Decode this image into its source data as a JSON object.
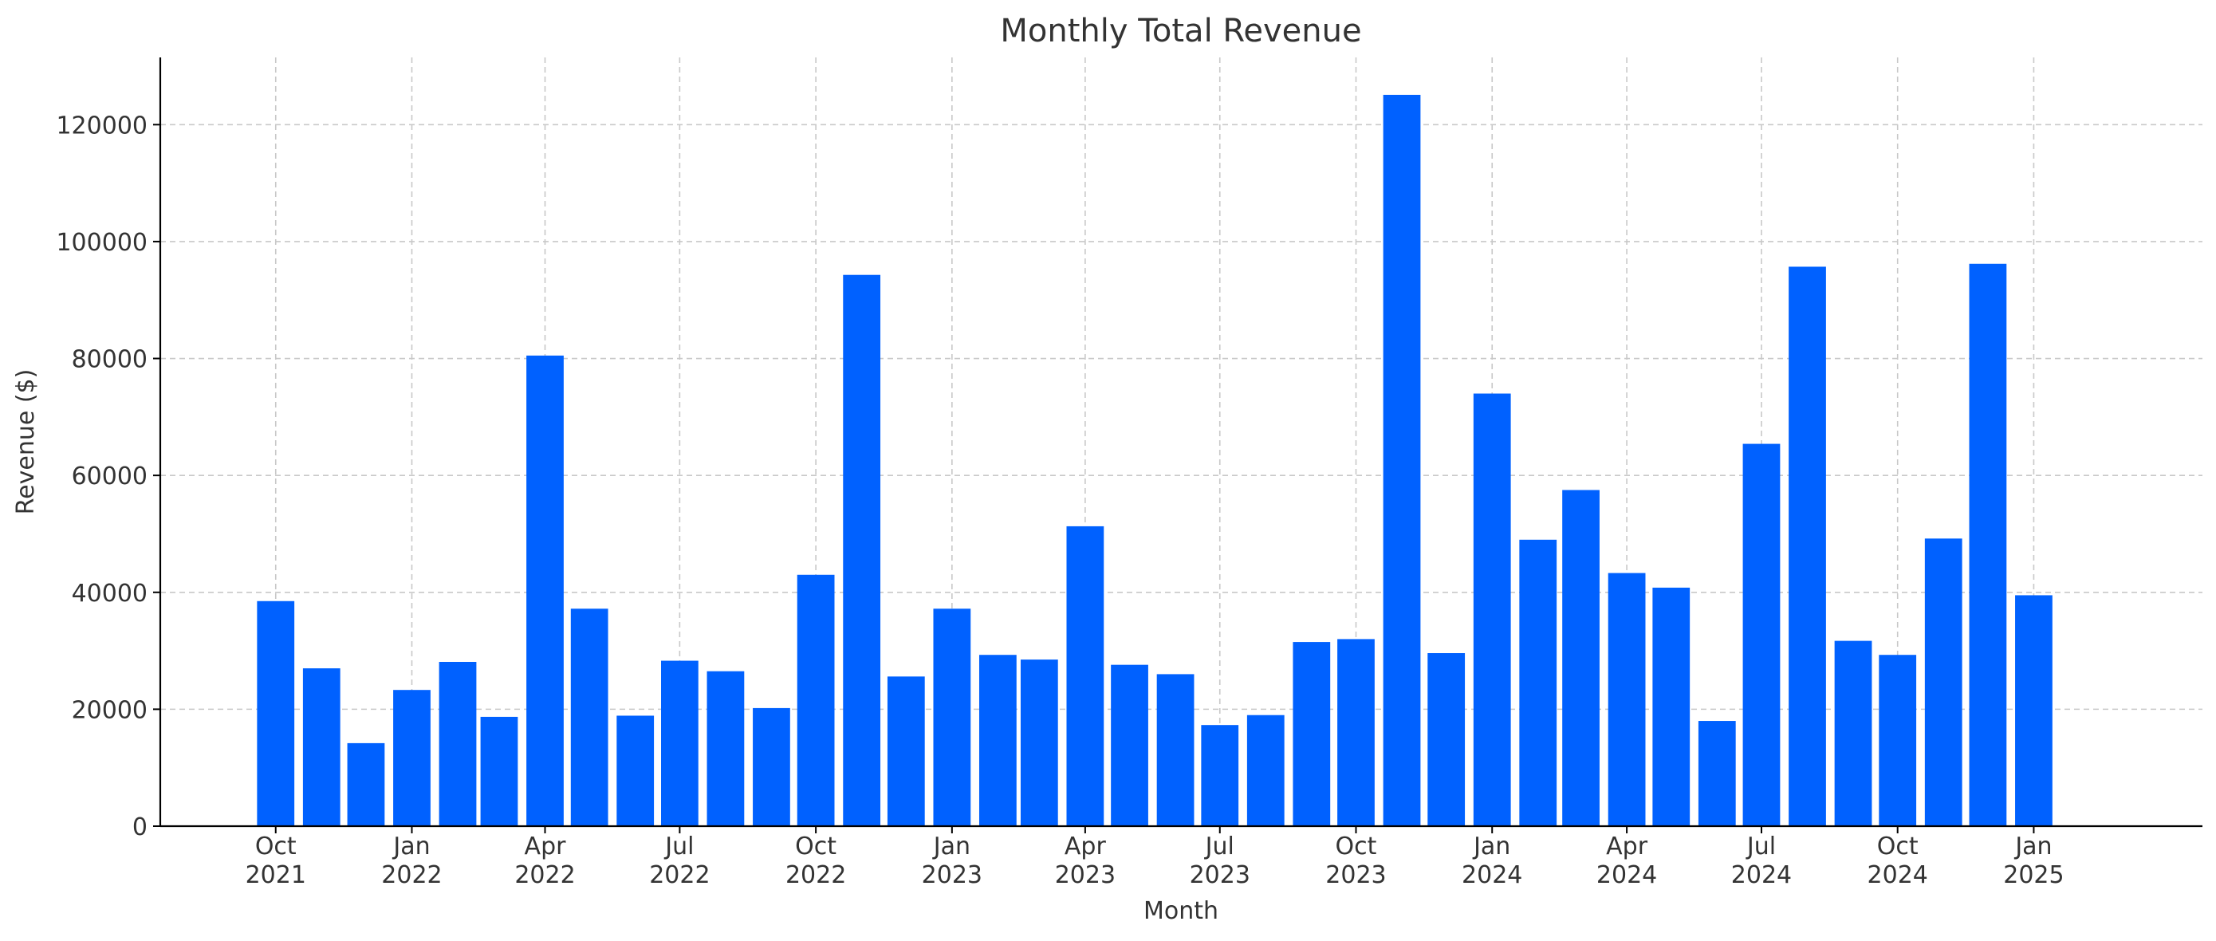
{
  "chart_data": {
    "type": "bar",
    "title": "Monthly Total Revenue",
    "xlabel": "Month",
    "ylabel": "Revenue ($)",
    "ylim": [
      0,
      131500
    ],
    "xlim": [
      "2021-07-15",
      "2025-04-25"
    ],
    "y_ticks": [
      0,
      20000,
      40000,
      60000,
      80000,
      100000,
      120000
    ],
    "x_ticks": [
      {
        "date": "2021-10-01",
        "line1": "Oct",
        "line2": "2021"
      },
      {
        "date": "2022-01-01",
        "line1": "Jan",
        "line2": "2022"
      },
      {
        "date": "2022-04-01",
        "line1": "Apr",
        "line2": "2022"
      },
      {
        "date": "2022-07-01",
        "line1": "Jul",
        "line2": "2022"
      },
      {
        "date": "2022-10-01",
        "line1": "Oct",
        "line2": "2022"
      },
      {
        "date": "2023-01-01",
        "line1": "Jan",
        "line2": "2023"
      },
      {
        "date": "2023-04-01",
        "line1": "Apr",
        "line2": "2023"
      },
      {
        "date": "2023-07-01",
        "line1": "Jul",
        "line2": "2023"
      },
      {
        "date": "2023-10-01",
        "line1": "Oct",
        "line2": "2023"
      },
      {
        "date": "2024-01-01",
        "line1": "Jan",
        "line2": "2024"
      },
      {
        "date": "2024-04-01",
        "line1": "Apr",
        "line2": "2024"
      },
      {
        "date": "2024-07-01",
        "line1": "Jul",
        "line2": "2024"
      },
      {
        "date": "2024-10-01",
        "line1": "Oct",
        "line2": "2024"
      },
      {
        "date": "2025-01-01",
        "line1": "Jan",
        "line2": "2025"
      }
    ],
    "grid": true,
    "bar_color": "#0061ff",
    "x": [
      "2021-10",
      "2021-11",
      "2021-12",
      "2022-01",
      "2022-02",
      "2022-03",
      "2022-04",
      "2022-05",
      "2022-06",
      "2022-07",
      "2022-08",
      "2022-09",
      "2022-10",
      "2022-11",
      "2022-12",
      "2023-01",
      "2023-02",
      "2023-03",
      "2023-04",
      "2023-05",
      "2023-06",
      "2023-07",
      "2023-08",
      "2023-09",
      "2023-10",
      "2023-11",
      "2023-12",
      "2024-01",
      "2024-02",
      "2024-03",
      "2024-04",
      "2024-05",
      "2024-06",
      "2024-07",
      "2024-08",
      "2024-09",
      "2024-10",
      "2024-11",
      "2024-12",
      "2025-01"
    ],
    "values": [
      38500,
      27000,
      14200,
      23300,
      28100,
      18700,
      80500,
      37200,
      18900,
      28300,
      26500,
      20200,
      43000,
      94300,
      25600,
      37200,
      29300,
      28500,
      51300,
      27600,
      26000,
      17300,
      19000,
      31500,
      32000,
      125100,
      29600,
      74000,
      49000,
      57500,
      43300,
      40800,
      18000,
      65400,
      95700,
      31700,
      29300,
      49200,
      96200,
      39500
    ]
  }
}
